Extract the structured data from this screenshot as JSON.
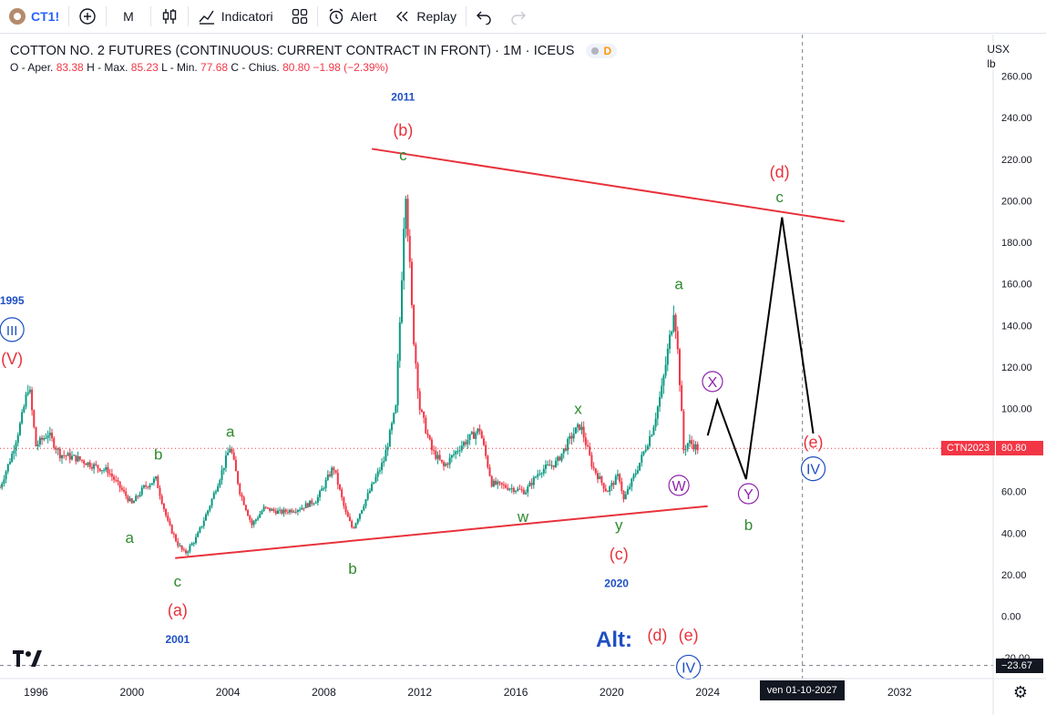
{
  "toolbar": {
    "symbol": "CT1!",
    "add_icon": "plus-circle-icon",
    "interval": "M",
    "chart_type_icon": "candles-icon",
    "indicators_label": "Indicatori",
    "layout_icon": "grid-icon",
    "alert_label": "Alert",
    "replay_label": "Replay",
    "undo_icon": "undo-icon",
    "redo_icon": "redo-icon"
  },
  "legend": {
    "title": "COTTON NO. 2 FUTURES (CONTINUOUS: CURRENT CONTRACT IN FRONT) · 1M · ICEUS",
    "badge_letter": "D",
    "o_label": "O - Aper.",
    "o_val": "83.38",
    "h_label": "H - Max.",
    "h_val": "85.23",
    "l_label": "L - Min.",
    "l_val": "77.68",
    "c_label": "C - Chius.",
    "c_val": "80.80",
    "change": "−1.98 (−2.39%)"
  },
  "units": {
    "currency": "USX",
    "unit": "lb"
  },
  "price_tags": {
    "symbol_tag": "CTN2023",
    "last_price": "80.80",
    "crosshair_price": "−23.67"
  },
  "date_tag": "ven 01-10-2027",
  "colors": {
    "up": "#089981",
    "down": "#f23645",
    "wave_red": "#e8323c",
    "wave_green": "#2e8b2e",
    "wave_blue": "#1e4fc4",
    "wave_purple": "#8e24aa",
    "trendline": "#e8323c"
  },
  "chart_data": {
    "type": "candlestick",
    "interval": "1M",
    "x_range": [
      1994.3,
      2035.7
    ],
    "y_range": [
      -30,
      280
    ],
    "x_ticks": [
      {
        "label": "1996",
        "x": 1995.8
      },
      {
        "label": "2000",
        "x": 1999.8
      },
      {
        "label": "2004",
        "x": 2003.8
      },
      {
        "label": "2008",
        "x": 2007.8
      },
      {
        "label": "2012",
        "x": 2011.8
      },
      {
        "label": "2016",
        "x": 2015.8
      },
      {
        "label": "2020",
        "x": 2019.8
      },
      {
        "label": "2024",
        "x": 2023.8
      },
      {
        "label": "2032",
        "x": 2031.8
      }
    ],
    "y_ticks": [
      "260.00",
      "240.00",
      "220.00",
      "200.00",
      "180.00",
      "160.00",
      "140.00",
      "120.00",
      "100.00",
      "80.00",
      "60.00",
      "40.00",
      "20.00",
      "0.00",
      "-20.00"
    ],
    "price_path": [
      [
        1994.3,
        62
      ],
      [
        1994.8,
        78
      ],
      [
        1995.2,
        95
      ],
      [
        1995.5,
        112
      ],
      [
        1995.8,
        82
      ],
      [
        1996.3,
        88
      ],
      [
        1996.8,
        78
      ],
      [
        1997.5,
        76
      ],
      [
        1998.3,
        72
      ],
      [
        1998.8,
        70
      ],
      [
        1999.3,
        62
      ],
      [
        1999.8,
        54
      ],
      [
        2000.3,
        62
      ],
      [
        2000.8,
        66
      ],
      [
        2001.3,
        45
      ],
      [
        2001.7,
        35
      ],
      [
        2002.0,
        30
      ],
      [
        2002.5,
        38
      ],
      [
        2003.0,
        52
      ],
      [
        2003.5,
        68
      ],
      [
        2003.9,
        82
      ],
      [
        2004.3,
        60
      ],
      [
        2004.8,
        44
      ],
      [
        2005.3,
        52
      ],
      [
        2006.0,
        50
      ],
      [
        2006.8,
        52
      ],
      [
        2007.5,
        56
      ],
      [
        2008.2,
        72
      ],
      [
        2008.7,
        50
      ],
      [
        2009.0,
        42
      ],
      [
        2009.5,
        55
      ],
      [
        2010.3,
        75
      ],
      [
        2010.8,
        100
      ],
      [
        2011.0,
        150
      ],
      [
        2011.2,
        210
      ],
      [
        2011.5,
        140
      ],
      [
        2011.8,
        100
      ],
      [
        2012.3,
        80
      ],
      [
        2012.8,
        72
      ],
      [
        2013.5,
        82
      ],
      [
        2014.3,
        90
      ],
      [
        2014.8,
        64
      ],
      [
        2015.5,
        62
      ],
      [
        2016.2,
        60
      ],
      [
        2016.8,
        70
      ],
      [
        2017.5,
        74
      ],
      [
        2018.2,
        88
      ],
      [
        2018.5,
        92
      ],
      [
        2019.0,
        72
      ],
      [
        2019.6,
        60
      ],
      [
        2020.1,
        68
      ],
      [
        2020.3,
        56
      ],
      [
        2020.9,
        72
      ],
      [
        2021.5,
        90
      ],
      [
        2021.9,
        110
      ],
      [
        2022.3,
        140
      ],
      [
        2022.4,
        150
      ],
      [
        2022.6,
        120
      ],
      [
        2022.8,
        80
      ],
      [
        2023.0,
        84
      ],
      [
        2023.4,
        80.8
      ]
    ],
    "trendlines": [
      {
        "from": [
          2009.8,
          225
        ],
        "to": [
          2029.5,
          190
        ]
      },
      {
        "from": [
          2001.6,
          28
        ],
        "to": [
          2023.8,
          53
        ]
      }
    ],
    "projection": [
      [
        2023.8,
        87
      ],
      [
        2024.2,
        104
      ],
      [
        2025.4,
        66
      ],
      [
        2026.9,
        192
      ],
      [
        2028.2,
        88
      ]
    ],
    "crosshair": {
      "x": 2027.75,
      "y": -23.67
    },
    "last_price_line": 80.8,
    "annotations": [
      {
        "text": "1995",
        "x": 1994.8,
        "y": 152,
        "color": "blue",
        "kind": "year"
      },
      {
        "text": "III",
        "x": 1994.8,
        "y": 138,
        "color": "blue",
        "kind": "circle"
      },
      {
        "text": "(V)",
        "x": 1994.8,
        "y": 124,
        "color": "red",
        "kind": "paren"
      },
      {
        "text": "a",
        "x": 1999.7,
        "y": 38,
        "color": "green",
        "kind": "letter"
      },
      {
        "text": "b",
        "x": 2000.9,
        "y": 78,
        "color": "green",
        "kind": "letter"
      },
      {
        "text": "c",
        "x": 2001.7,
        "y": 17,
        "color": "green",
        "kind": "letter"
      },
      {
        "text": "(a)",
        "x": 2001.7,
        "y": 3,
        "color": "red",
        "kind": "paren"
      },
      {
        "text": "2001",
        "x": 2001.7,
        "y": -11,
        "color": "blue",
        "kind": "year"
      },
      {
        "text": "a",
        "x": 2003.9,
        "y": 89,
        "color": "green",
        "kind": "letter"
      },
      {
        "text": "b",
        "x": 2009.0,
        "y": 23,
        "color": "green",
        "kind": "letter"
      },
      {
        "text": "2011",
        "x": 2011.1,
        "y": 250,
        "color": "blue",
        "kind": "year"
      },
      {
        "text": "(b)",
        "x": 2011.1,
        "y": 234,
        "color": "red",
        "kind": "paren"
      },
      {
        "text": "c",
        "x": 2011.1,
        "y": 222,
        "color": "green",
        "kind": "letter"
      },
      {
        "text": "w",
        "x": 2016.1,
        "y": 48,
        "color": "green",
        "kind": "letter"
      },
      {
        "text": "x",
        "x": 2018.4,
        "y": 100,
        "color": "green",
        "kind": "letter"
      },
      {
        "text": "y",
        "x": 2020.1,
        "y": 44,
        "color": "green",
        "kind": "letter"
      },
      {
        "text": "(c)",
        "x": 2020.1,
        "y": 30,
        "color": "red",
        "kind": "paren"
      },
      {
        "text": "2020",
        "x": 2020.0,
        "y": 16,
        "color": "blue",
        "kind": "year"
      },
      {
        "text": "a",
        "x": 2022.6,
        "y": 160,
        "color": "green",
        "kind": "letter"
      },
      {
        "text": "X",
        "x": 2024.0,
        "y": 113,
        "color": "purple",
        "kind": "circle"
      },
      {
        "text": "W",
        "x": 2022.6,
        "y": 63,
        "color": "purple",
        "kind": "circle"
      },
      {
        "text": "Y",
        "x": 2025.5,
        "y": 59,
        "color": "purple",
        "kind": "circle"
      },
      {
        "text": "b",
        "x": 2025.5,
        "y": 44,
        "color": "green",
        "kind": "letter"
      },
      {
        "text": "(d)",
        "x": 2026.8,
        "y": 214,
        "color": "red",
        "kind": "paren"
      },
      {
        "text": "c",
        "x": 2026.8,
        "y": 202,
        "color": "green",
        "kind": "letter"
      },
      {
        "text": "(e)",
        "x": 2028.2,
        "y": 84,
        "color": "red",
        "kind": "paren"
      },
      {
        "text": "IV",
        "x": 2028.2,
        "y": 71,
        "color": "blue",
        "kind": "circle"
      },
      {
        "text": "Alt:",
        "x": 2019.9,
        "y": -11,
        "color": "blue",
        "kind": "alt"
      },
      {
        "text": "(d)",
        "x": 2021.7,
        "y": -9,
        "color": "red",
        "kind": "paren"
      },
      {
        "text": "(e)",
        "x": 2023.0,
        "y": -9,
        "color": "red",
        "kind": "paren"
      },
      {
        "text": "IV",
        "x": 2023.0,
        "y": -24.5,
        "color": "blue",
        "kind": "circle"
      }
    ]
  }
}
